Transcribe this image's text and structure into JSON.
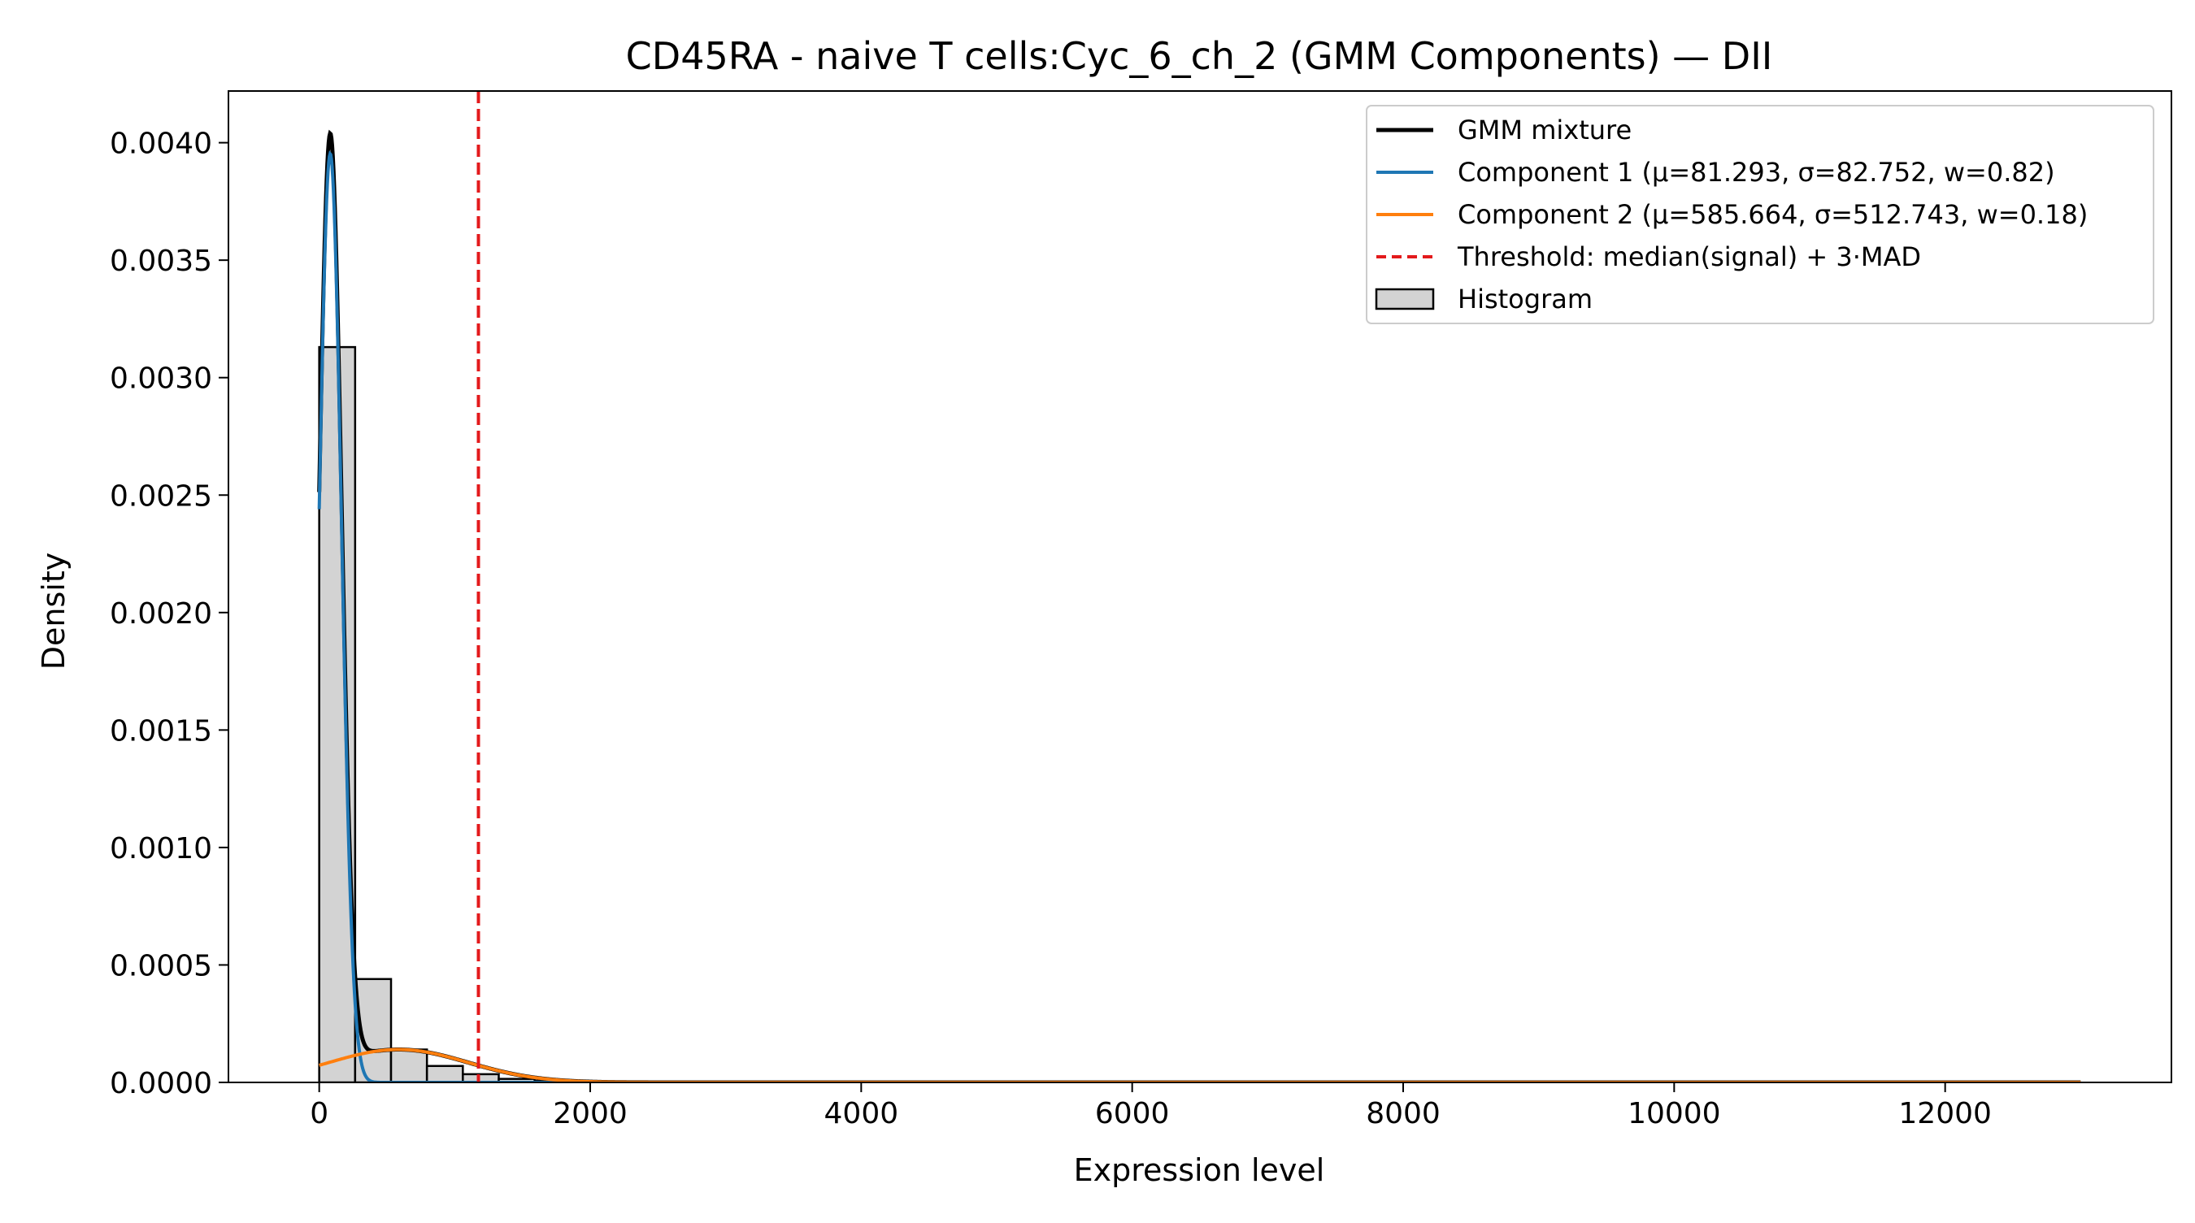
{
  "chart_data": {
    "type": "bar",
    "title": "CD45RA - naive T cells:Cyc_6_ch_2 (GMM Components) — DII",
    "xlabel": "Expression level",
    "ylabel": "Density",
    "xlim": [
      -670,
      13670
    ],
    "ylim": [
      0,
      0.00422
    ],
    "grid": false,
    "legend_position": "upper right",
    "x_ticks": [
      0,
      2000,
      4000,
      6000,
      8000,
      10000,
      12000
    ],
    "x_tick_labels": [
      "0",
      "2000",
      "4000",
      "6000",
      "8000",
      "10000",
      "12000"
    ],
    "y_ticks": [
      0,
      0.0005,
      0.001,
      0.0015,
      0.002,
      0.0025,
      0.003,
      0.0035,
      0.004
    ],
    "y_tick_labels": [
      "0.0000",
      "0.0005",
      "0.0010",
      "0.0015",
      "0.0020",
      "0.0025",
      "0.0030",
      "0.0035",
      "0.0040"
    ],
    "histogram": {
      "name": "Histogram",
      "bin_edges": [
        0,
        265,
        530,
        795,
        1060,
        1325,
        1590,
        1855,
        2120
      ],
      "density": [
        0.00313,
        0.00044,
        0.00014,
        7e-05,
        3.5e-05,
        1.5e-05,
        6e-06,
        3e-06
      ]
    },
    "components": [
      {
        "name": "Component 1 (μ=81.293, σ=82.752, w=0.82)",
        "mu": 81.293,
        "sigma": 82.752,
        "weight": 0.82,
        "color": "#1f77b4"
      },
      {
        "name": "Component 2 (μ=585.664, σ=512.743, w=0.18)",
        "mu": 585.664,
        "sigma": 512.743,
        "weight": 0.18,
        "color": "#ff7f0e"
      }
    ],
    "mixture": {
      "name": "GMM mixture",
      "color": "#000000",
      "x_range": [
        0,
        13000
      ]
    },
    "threshold": {
      "name": "Threshold: median(signal) + 3·MAD",
      "value": 1175,
      "color": "#e31a1c"
    },
    "histogram_color": "#d3d3d3",
    "legend": [
      {
        "label": "GMM mixture",
        "style": "solid",
        "color": "#000000"
      },
      {
        "label": "Component 1 (μ=81.293, σ=82.752, w=0.82)",
        "style": "solid",
        "color": "#1f77b4"
      },
      {
        "label": "Component 2 (μ=585.664, σ=512.743, w=0.18)",
        "style": "solid",
        "color": "#ff7f0e"
      },
      {
        "label": "Threshold: median(signal) + 3·MAD",
        "style": "dashed",
        "color": "#e31a1c"
      },
      {
        "label": "Histogram",
        "style": "patch",
        "color": "#d3d3d3"
      }
    ]
  }
}
